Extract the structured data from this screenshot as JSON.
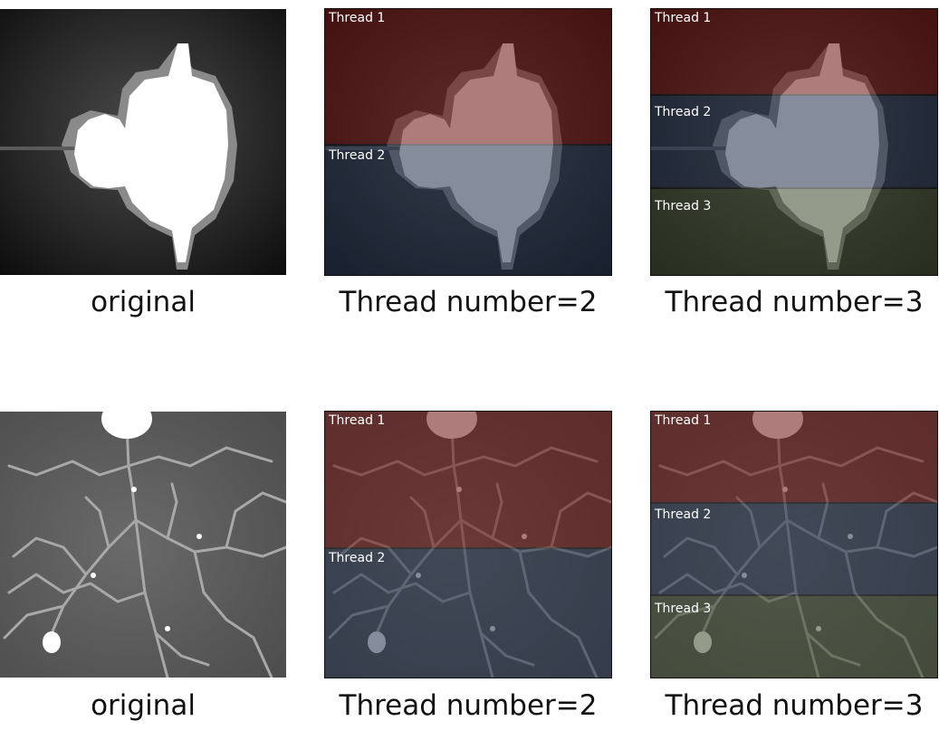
{
  "rows": [
    {
      "image": "mandelbrot-overview",
      "panels": [
        {
          "caption": "original",
          "regions": []
        },
        {
          "caption": "Thread number=2",
          "regions": [
            {
              "label": "Thread 1",
              "color": "#6e1111"
            },
            {
              "label": "Thread 2",
              "color": "#22304a"
            }
          ]
        },
        {
          "caption": "Thread number=3",
          "regions": [
            {
              "label": "Thread 1",
              "color": "#6e1111"
            },
            {
              "label": "Thread 2",
              "color": "#22304a"
            },
            {
              "label": "Thread 3",
              "color": "#3e4a2e"
            }
          ]
        }
      ]
    },
    {
      "image": "mandelbrot-zoomed-filaments",
      "panels": [
        {
          "caption": "original",
          "regions": []
        },
        {
          "caption": "Thread number=2",
          "regions": [
            {
              "label": "Thread 1",
              "color": "#6e1111"
            },
            {
              "label": "Thread 2",
              "color": "#22304a"
            }
          ]
        },
        {
          "caption": "Thread number=3",
          "regions": [
            {
              "label": "Thread 1",
              "color": "#6e1111"
            },
            {
              "label": "Thread 2",
              "color": "#22304a"
            },
            {
              "label": "Thread 3",
              "color": "#3e4a2e"
            }
          ]
        }
      ]
    }
  ]
}
